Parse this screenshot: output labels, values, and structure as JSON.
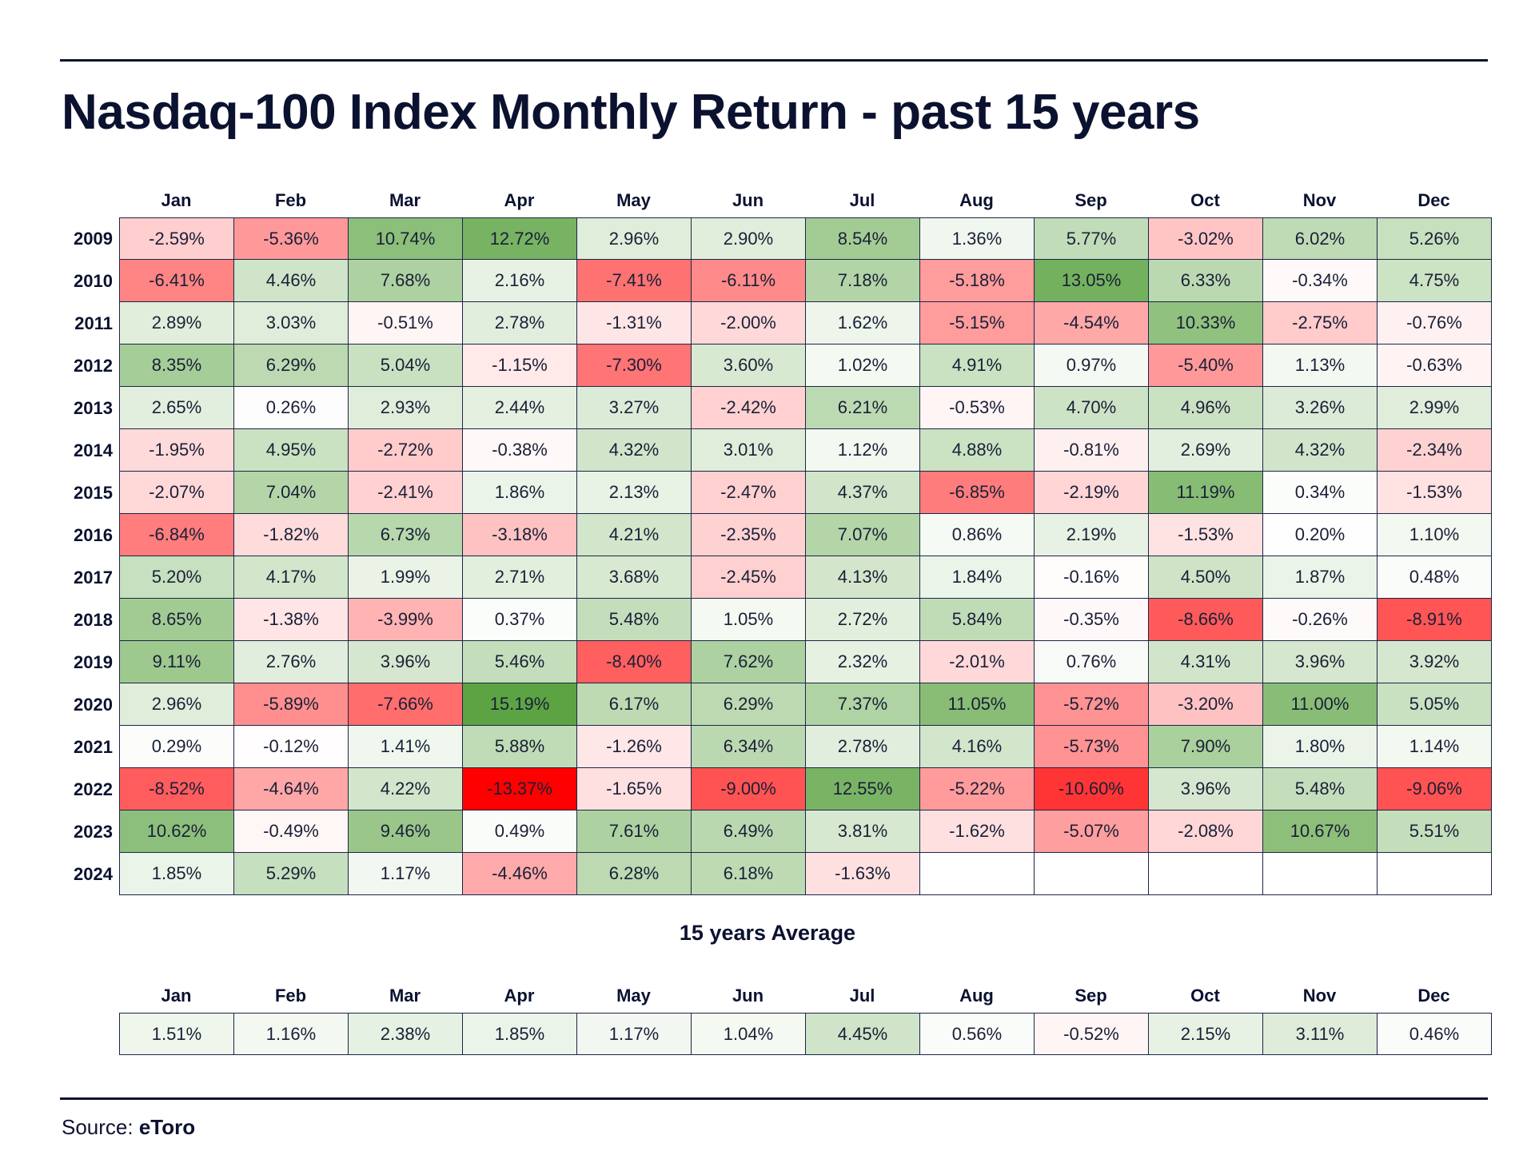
{
  "title": "Nasdaq-100 Index Monthly Return - past 15 years",
  "average_title": "15 years Average",
  "source": {
    "label": "Source:",
    "name": "eToro"
  },
  "colors": {
    "text": "#0b1230",
    "positive": "#5ca443",
    "negative": "#ff0000",
    "neutral": "#ffffff"
  },
  "chart_data": [
    {
      "type": "heatmap",
      "title": "Nasdaq-100 Index Monthly Return - past 15 years",
      "x": [
        "Jan",
        "Feb",
        "Mar",
        "Apr",
        "May",
        "Jun",
        "Jul",
        "Aug",
        "Sep",
        "Oct",
        "Nov",
        "Dec"
      ],
      "y": [
        "2009",
        "2010",
        "2011",
        "2012",
        "2013",
        "2014",
        "2015",
        "2016",
        "2017",
        "2018",
        "2019",
        "2020",
        "2021",
        "2022",
        "2023",
        "2024"
      ],
      "unit": "%",
      "values": [
        [
          "-2.59%",
          "-5.36%",
          "10.74%",
          "12.72%",
          "2.96%",
          "2.90%",
          "8.54%",
          "1.36%",
          "5.77%",
          "-3.02%",
          "6.02%",
          "5.26%"
        ],
        [
          "-6.41%",
          "4.46%",
          "7.68%",
          "2.16%",
          "-7.41%",
          "-6.11%",
          "7.18%",
          "-5.18%",
          "13.05%",
          "6.33%",
          "-0.34%",
          "4.75%"
        ],
        [
          "2.89%",
          "3.03%",
          "-0.51%",
          "2.78%",
          "-1.31%",
          "-2.00%",
          "1.62%",
          "-5.15%",
          "-4.54%",
          "10.33%",
          "-2.75%",
          "-0.76%"
        ],
        [
          "8.35%",
          "6.29%",
          "5.04%",
          "-1.15%",
          "-7.30%",
          "3.60%",
          "1.02%",
          "4.91%",
          "0.97%",
          "-5.40%",
          "1.13%",
          "-0.63%"
        ],
        [
          "2.65%",
          "0.26%",
          "2.93%",
          "2.44%",
          "3.27%",
          "-2.42%",
          "6.21%",
          "-0.53%",
          "4.70%",
          "4.96%",
          "3.26%",
          "2.99%"
        ],
        [
          "-1.95%",
          "4.95%",
          "-2.72%",
          "-0.38%",
          "4.32%",
          "3.01%",
          "1.12%",
          "4.88%",
          "-0.81%",
          "2.69%",
          "4.32%",
          "-2.34%"
        ],
        [
          "-2.07%",
          "7.04%",
          "-2.41%",
          "1.86%",
          "2.13%",
          "-2.47%",
          "4.37%",
          "-6.85%",
          "-2.19%",
          "11.19%",
          "0.34%",
          "-1.53%"
        ],
        [
          "-6.84%",
          "-1.82%",
          "6.73%",
          "-3.18%",
          "4.21%",
          "-2.35%",
          "7.07%",
          "0.86%",
          "2.19%",
          "-1.53%",
          "0.20%",
          "1.10%"
        ],
        [
          "5.20%",
          "4.17%",
          "1.99%",
          "2.71%",
          "3.68%",
          "-2.45%",
          "4.13%",
          "1.84%",
          "-0.16%",
          "4.50%",
          "1.87%",
          "0.48%"
        ],
        [
          "8.65%",
          "-1.38%",
          "-3.99%",
          "0.37%",
          "5.48%",
          "1.05%",
          "2.72%",
          "5.84%",
          "-0.35%",
          "-8.66%",
          "-0.26%",
          "-8.91%"
        ],
        [
          "9.11%",
          "2.76%",
          "3.96%",
          "5.46%",
          "-8.40%",
          "7.62%",
          "2.32%",
          "-2.01%",
          "0.76%",
          "4.31%",
          "3.96%",
          "3.92%"
        ],
        [
          "2.96%",
          "-5.89%",
          "-7.66%",
          "15.19%",
          "6.17%",
          "6.29%",
          "7.37%",
          "11.05%",
          "-5.72%",
          "-3.20%",
          "11.00%",
          "5.05%"
        ],
        [
          "0.29%",
          "-0.12%",
          "1.41%",
          "5.88%",
          "-1.26%",
          "6.34%",
          "2.78%",
          "4.16%",
          "-5.73%",
          "7.90%",
          "1.80%",
          "1.14%"
        ],
        [
          "-8.52%",
          "-4.64%",
          "4.22%",
          "-13.37%",
          "-1.65%",
          "-9.00%",
          "12.55%",
          "-5.22%",
          "-10.60%",
          "3.96%",
          "5.48%",
          "-9.06%"
        ],
        [
          "10.62%",
          "-0.49%",
          "9.46%",
          "0.49%",
          "7.61%",
          "6.49%",
          "3.81%",
          "-1.62%",
          "-5.07%",
          "-2.08%",
          "10.67%",
          "5.51%"
        ],
        [
          "1.85%",
          "5.29%",
          "1.17%",
          "-4.46%",
          "6.28%",
          "6.18%",
          "-1.63%",
          "",
          "",
          "",
          "",
          ""
        ]
      ]
    },
    {
      "type": "heatmap",
      "title": "15 years Average",
      "x": [
        "Jan",
        "Feb",
        "Mar",
        "Apr",
        "May",
        "Jun",
        "Jul",
        "Aug",
        "Sep",
        "Oct",
        "Nov",
        "Dec"
      ],
      "y": [
        ""
      ],
      "unit": "%",
      "values": [
        [
          "1.51%",
          "1.16%",
          "2.38%",
          "1.85%",
          "1.17%",
          "1.04%",
          "4.45%",
          "0.56%",
          "-0.52%",
          "2.15%",
          "3.11%",
          "0.46%"
        ]
      ]
    }
  ]
}
